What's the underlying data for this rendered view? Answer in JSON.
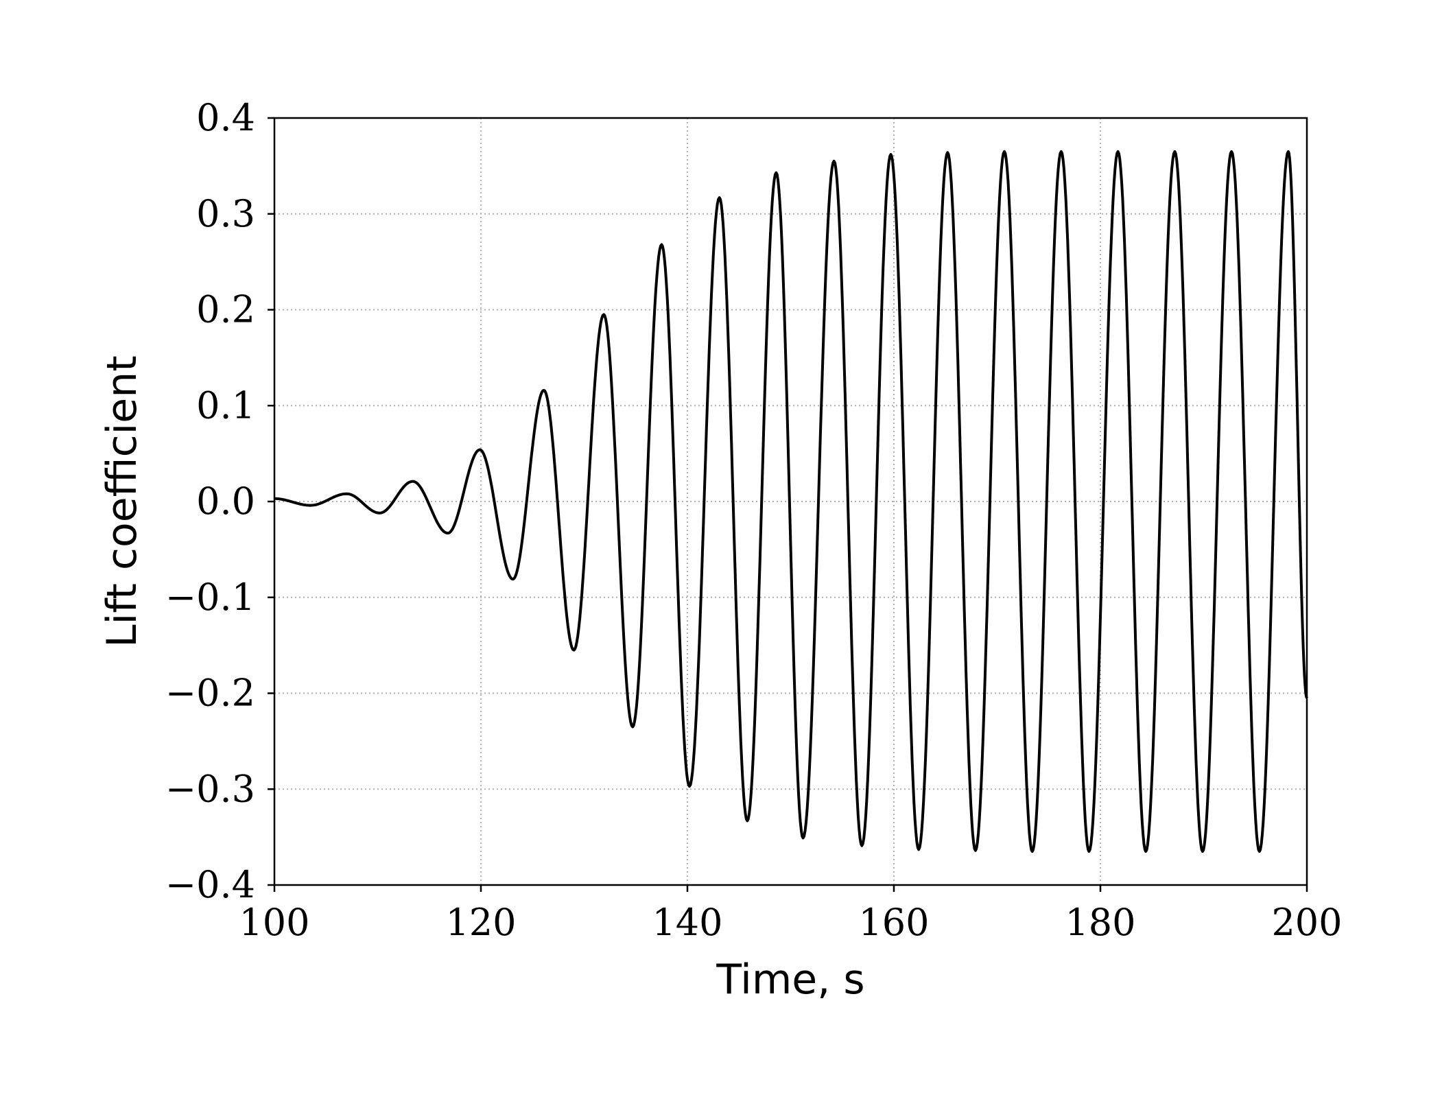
{
  "chart_data": {
    "type": "line",
    "title": "",
    "xlabel": "Time, s",
    "ylabel": "Lift coefficient",
    "xlim": [
      100,
      200
    ],
    "ylim": [
      -0.4,
      0.4
    ],
    "x_ticks": [
      100,
      120,
      140,
      160,
      180,
      200
    ],
    "x_tick_labels": [
      "100",
      "120",
      "140",
      "160",
      "180",
      "200"
    ],
    "y_ticks": [
      -0.4,
      -0.3,
      -0.2,
      -0.1,
      0.0,
      0.1,
      0.2,
      0.3,
      0.4
    ],
    "y_tick_labels": [
      "−0.4",
      "−0.3",
      "−0.2",
      "−0.1",
      "0.0",
      "0.1",
      "0.2",
      "0.3",
      "0.4"
    ],
    "grid": true,
    "grid_style": "dotted",
    "legend": "none",
    "line_color": "#000000",
    "grid_color": "#b0b0b0",
    "series": [
      {
        "x": [
          100.0,
          103.5,
          107.0,
          110.2,
          113.4,
          116.8,
          119.9,
          123.1,
          126.1,
          129.0,
          131.9,
          134.7,
          137.5,
          140.2,
          143.1,
          145.8,
          148.6,
          151.2,
          154.2,
          156.9,
          159.7,
          162.4,
          165.2,
          167.9,
          170.7,
          173.4,
          176.2,
          178.9,
          181.7,
          184.4,
          187.2,
          189.9,
          192.7,
          195.4,
          198.2,
          200.0
        ],
        "y": [
          0.003,
          -0.004,
          0.008,
          -0.012,
          0.021,
          -0.033,
          0.054,
          -0.081,
          0.116,
          -0.155,
          0.195,
          -0.235,
          0.268,
          -0.297,
          0.317,
          -0.333,
          0.343,
          -0.351,
          0.355,
          -0.359,
          0.362,
          -0.363,
          0.364,
          -0.364,
          0.365,
          -0.365,
          0.365,
          -0.365,
          0.365,
          -0.365,
          0.365,
          -0.365,
          0.365,
          -0.365,
          0.365,
          -0.205
        ]
      }
    ]
  }
}
